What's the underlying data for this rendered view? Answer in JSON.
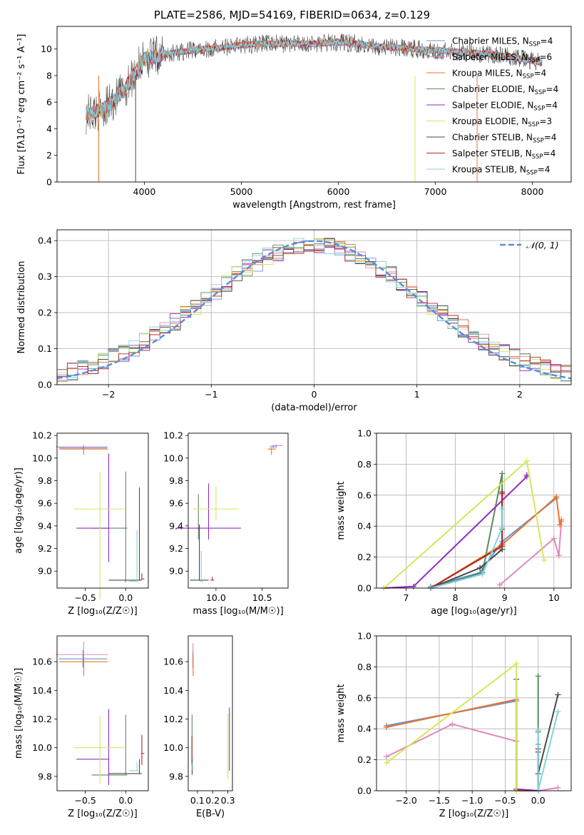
{
  "figure": {
    "title": "PLATE=2586, MJD=54169, FIBERID=0634, z=0.129"
  },
  "models": [
    {
      "name": "Chabrier MILES, N",
      "sub": "SSP",
      "n": "=4",
      "color": "#6a93d4"
    },
    {
      "name": "Salpeter MILES, N",
      "sub": "SSP",
      "n": "=6",
      "color": "#e08ab8"
    },
    {
      "name": "Kroupa MILES, N",
      "sub": "SSP",
      "n": "=4",
      "color": "#e8742a"
    },
    {
      "name": "Chabrier ELODIE, N",
      "sub": "SSP",
      "n": "=4",
      "color": "#5b8a5b"
    },
    {
      "name": "Salpeter ELODIE, N",
      "sub": "SSP",
      "n": "=4",
      "color": "#8e2dbe"
    },
    {
      "name": "Kroupa ELODIE, N",
      "sub": "SSP",
      "n": "=3",
      "color": "#d4e85a"
    },
    {
      "name": "Chabrier STELIB, N",
      "sub": "SSP",
      "n": "=4",
      "color": "#4a4a4a"
    },
    {
      "name": "Salpeter STELIB, N",
      "sub": "SSP",
      "n": "=4",
      "color": "#b02828"
    },
    {
      "name": "Kroupa STELIB, N",
      "sub": "SSP",
      "n": "=4",
      "color": "#80d4dc"
    }
  ],
  "chart_data": [
    {
      "id": "spectrum",
      "type": "line",
      "xlabel": "wavelength [Angstrom, rest frame]",
      "ylabel": "Flux [fλ10⁻¹⁷ erg cm⁻² s⁻¹ A⁻¹]",
      "xlim": [
        3100,
        8400
      ],
      "ylim": [
        0,
        11.7
      ],
      "xticks": [
        4000,
        5000,
        6000,
        7000,
        8000
      ],
      "yticks": [
        0,
        2,
        4,
        6,
        8,
        10
      ],
      "x": [
        3400,
        3500,
        3600,
        3700,
        3800,
        3900,
        4000,
        4100,
        4200,
        4300,
        4400,
        4600,
        4800,
        5000,
        5200,
        5400,
        5600,
        5800,
        6000,
        6200,
        6400,
        6600,
        6800,
        7000,
        7200,
        7400,
        7600,
        7800,
        8000,
        8100
      ],
      "series_values": [
        5.1,
        5.3,
        5.6,
        6.2,
        7.0,
        8.2,
        9.3,
        9.4,
        9.6,
        9.7,
        9.8,
        10.0,
        10.1,
        10.3,
        10.4,
        10.4,
        10.4,
        10.4,
        10.5,
        10.4,
        10.2,
        10.1,
        10.0,
        9.9,
        9.8,
        9.7,
        9.6,
        9.4,
        9.1,
        9.0
      ],
      "legend": "top-right",
      "grid": false
    },
    {
      "id": "residuals",
      "type": "histogram",
      "xlabel": "(data-model)/error",
      "ylabel": "Normed distribution",
      "xlim": [
        -2.5,
        2.5
      ],
      "ylim": [
        0,
        0.43
      ],
      "xticks": [
        -2,
        -1,
        0,
        1,
        2
      ],
      "yticks": [
        0.0,
        0.1,
        0.2,
        0.3,
        0.4
      ],
      "bin_width": 0.1,
      "reference_curve": "N(0,1)",
      "legend_label": "𝒩(0, 1)",
      "legend": "top-right",
      "grid": true
    },
    {
      "id": "age_vs_Z",
      "type": "scatter",
      "xlabel": "Z [log₁₀(Z/Z☉)]",
      "ylabel": "age  [log₁₀(age/yr)]",
      "xlim": [
        -0.85,
        0.28
      ],
      "ylim": [
        8.85,
        10.22
      ],
      "xticks": [
        -0.5,
        0.0
      ],
      "yticks": [
        9.0,
        9.2,
        9.4,
        9.6,
        9.8,
        10.0,
        10.2
      ],
      "points": [
        {
          "model": 0,
          "x": -0.53,
          "y": 10.09
        },
        {
          "model": 1,
          "x": -0.52,
          "y": 10.1
        },
        {
          "model": 2,
          "x": -0.52,
          "y": 10.08
        },
        {
          "model": 3,
          "x": 0.0,
          "y": 9.38
        },
        {
          "model": 4,
          "x": -0.21,
          "y": 9.38
        },
        {
          "model": 5,
          "x": -0.32,
          "y": 9.55
        },
        {
          "model": 6,
          "x": 0.17,
          "y": 8.92
        },
        {
          "model": 7,
          "x": 0.2,
          "y": 8.93
        },
        {
          "model": 8,
          "x": 0.14,
          "y": 8.91
        }
      ]
    },
    {
      "id": "age_vs_mass",
      "type": "scatter",
      "xlabel": "mass [log₁₀(M/M☉)]",
      "xlim": [
        9.7,
        10.78
      ],
      "ylim": [
        8.85,
        10.22
      ],
      "xticks": [
        10.0,
        10.5
      ],
      "yticks": [
        9.0,
        9.2,
        9.4,
        9.6,
        9.8,
        10.0,
        10.2
      ],
      "points": [
        {
          "model": 0,
          "x": 10.62,
          "y": 10.1
        },
        {
          "model": 1,
          "x": 10.65,
          "y": 10.11
        },
        {
          "model": 2,
          "x": 10.6,
          "y": 10.08
        },
        {
          "model": 3,
          "x": 9.81,
          "y": 9.38
        },
        {
          "model": 4,
          "x": 9.92,
          "y": 9.38
        },
        {
          "model": 5,
          "x": 10.0,
          "y": 9.55
        },
        {
          "model": 6,
          "x": 9.82,
          "y": 8.92
        },
        {
          "model": 7,
          "x": 9.96,
          "y": 8.92
        },
        {
          "model": 8,
          "x": 9.84,
          "y": 8.91
        }
      ]
    },
    {
      "id": "massweight_vs_age",
      "type": "line",
      "xlabel": "age  [log₁₀(age/yr)]",
      "ylabel": "mass weight",
      "xlim": [
        6.4,
        10.35
      ],
      "ylim": [
        0,
        1.0
      ],
      "xticks": [
        7,
        8,
        9,
        10
      ],
      "yticks": [
        0.0,
        0.2,
        0.4,
        0.6,
        0.8,
        1.0
      ],
      "series": [
        {
          "model": 0,
          "x": [
            7.5,
            8.5,
            8.95,
            10.05
          ],
          "y": [
            0.01,
            0.1,
            0.3,
            0.58
          ]
        },
        {
          "model": 1,
          "x": [
            8.9,
            10.0,
            10.1,
            10.15
          ],
          "y": [
            0.02,
            0.32,
            0.21,
            0.43
          ]
        },
        {
          "model": 2,
          "x": [
            7.5,
            8.95,
            10.05,
            10.12,
            10.15
          ],
          "y": [
            0.0,
            0.28,
            0.59,
            0.41,
            0.44
          ]
        },
        {
          "model": 3,
          "x": [
            7.5,
            8.55,
            8.95,
            8.95
          ],
          "y": [
            0.0,
            0.1,
            0.74,
            0.38
          ]
        },
        {
          "model": 4,
          "x": [
            6.55,
            7.15,
            9.45,
            9.45
          ],
          "y": [
            0.0,
            0.01,
            0.72,
            0.73
          ]
        },
        {
          "model": 5,
          "x": [
            6.55,
            9.45,
            9.8
          ],
          "y": [
            0.0,
            0.82,
            0.18
          ]
        },
        {
          "model": 6,
          "x": [
            7.5,
            8.5,
            8.95,
            8.95
          ],
          "y": [
            0.0,
            0.13,
            0.25,
            0.62
          ]
        },
        {
          "model": 7,
          "x": [
            7.5,
            8.95,
            8.95
          ],
          "y": [
            0.0,
            0.27,
            0.61
          ]
        },
        {
          "model": 8,
          "x": [
            7.5,
            8.55,
            8.95,
            8.95
          ],
          "y": [
            0.0,
            0.09,
            0.39,
            0.51
          ]
        }
      ],
      "grid": true
    },
    {
      "id": "mass_vs_Z",
      "type": "scatter",
      "xlabel": "Z [log₁₀(Z/Z☉)]",
      "ylabel": "mass [log₁₀(M/M☉)]",
      "xlim": [
        -0.85,
        0.28
      ],
      "ylim": [
        9.7,
        10.78
      ],
      "xticks": [
        -0.5,
        0.0
      ],
      "yticks": [
        9.8,
        10.0,
        10.2,
        10.4,
        10.6
      ],
      "points": [
        {
          "model": 0,
          "x": -0.53,
          "y": 10.62
        },
        {
          "model": 1,
          "x": -0.52,
          "y": 10.65
        },
        {
          "model": 2,
          "x": -0.52,
          "y": 10.6
        },
        {
          "model": 3,
          "x": 0.0,
          "y": 9.81
        },
        {
          "model": 4,
          "x": -0.21,
          "y": 9.92
        },
        {
          "model": 5,
          "x": -0.32,
          "y": 10.0
        },
        {
          "model": 6,
          "x": 0.17,
          "y": 9.82
        },
        {
          "model": 7,
          "x": 0.2,
          "y": 9.96
        },
        {
          "model": 8,
          "x": 0.14,
          "y": 9.84
        }
      ]
    },
    {
      "id": "mass_vs_ebv",
      "type": "scatter",
      "xlabel": "E(B-V)",
      "xlim": [
        0.04,
        0.33
      ],
      "ylim": [
        9.7,
        10.78
      ],
      "xticks": [
        0.1,
        0.2,
        0.3
      ],
      "yticks": [
        9.8,
        10.0,
        10.2,
        10.4,
        10.6
      ],
      "points": [
        {
          "model": 0,
          "x": 0.07,
          "y": 10.62
        },
        {
          "model": 1,
          "x": 0.071,
          "y": 10.65
        },
        {
          "model": 2,
          "x": 0.072,
          "y": 10.6
        },
        {
          "model": 3,
          "x": 0.065,
          "y": 9.81
        },
        {
          "model": 4,
          "x": 0.31,
          "y": 9.92
        },
        {
          "model": 5,
          "x": 0.3,
          "y": 10.0
        },
        {
          "model": 6,
          "x": 0.066,
          "y": 9.82
        },
        {
          "model": 7,
          "x": 0.064,
          "y": 9.96
        },
        {
          "model": 8,
          "x": 0.068,
          "y": 9.84
        }
      ]
    },
    {
      "id": "massweight_vs_Z",
      "type": "line",
      "xlabel": "Z [log₁₀(Z/Z☉)]",
      "ylabel": "mass weight",
      "xlim": [
        -2.45,
        0.5
      ],
      "ylim": [
        0,
        1.0
      ],
      "xticks": [
        -2.0,
        -1.5,
        -1.0,
        -0.5,
        0.0
      ],
      "yticks": [
        0.0,
        0.2,
        0.4,
        0.6,
        0.8,
        1.0
      ],
      "series": [
        {
          "model": 0,
          "x": [
            -2.3,
            -0.33,
            -0.33,
            0.0,
            0.0
          ],
          "y": [
            0.42,
            0.58,
            0.01,
            0.0,
            0.3
          ]
        },
        {
          "model": 1,
          "x": [
            -2.3,
            -1.3,
            -0.33,
            -0.33,
            0.0,
            0.3
          ],
          "y": [
            0.22,
            0.43,
            0.32,
            0.0,
            0.0,
            0.02
          ]
        },
        {
          "model": 2,
          "x": [
            -2.3,
            -0.33,
            -0.33,
            0.0
          ],
          "y": [
            0.41,
            0.59,
            0.0,
            0.0
          ]
        },
        {
          "model": 3,
          "x": [
            0.0,
            0.0,
            0.0
          ],
          "y": [
            0.74,
            0.0,
            0.38
          ]
        },
        {
          "model": 4,
          "x": [
            -0.33,
            -0.33,
            0.0
          ],
          "y": [
            0.72,
            0.01,
            0.0
          ]
        },
        {
          "model": 5,
          "x": [
            -2.3,
            -0.33,
            -0.33
          ],
          "y": [
            0.18,
            0.82,
            0.0
          ]
        },
        {
          "model": 6,
          "x": [
            0.0,
            0.0,
            0.3
          ],
          "y": [
            0.25,
            0.11,
            0.62
          ]
        },
        {
          "model": 7,
          "x": [
            0.0,
            0.0
          ],
          "y": [
            0.0,
            0.27
          ]
        },
        {
          "model": 8,
          "x": [
            0.0,
            0.0,
            0.3
          ],
          "y": [
            0.39,
            0.0,
            0.51
          ]
        }
      ],
      "grid": true
    }
  ]
}
